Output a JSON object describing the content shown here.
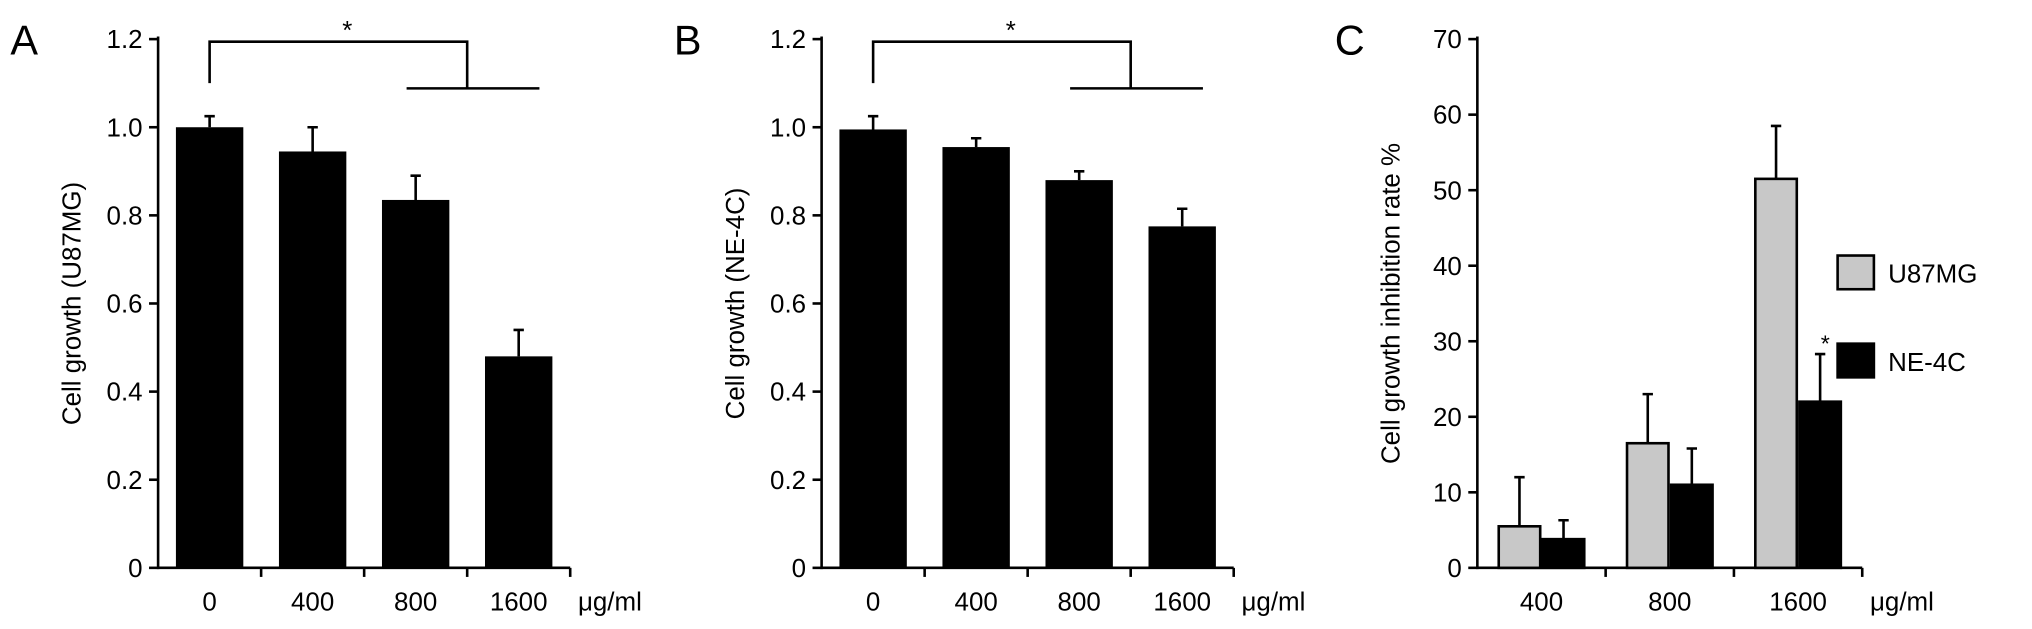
{
  "chart_data": [
    {
      "type": "bar",
      "panel": "A",
      "ylabel": "Cell growth (U87MG)",
      "x_unit": "μg/ml",
      "annotation": "*",
      "categories": [
        "0",
        "400",
        "800",
        "1600"
      ],
      "values": [
        1.0,
        0.945,
        0.835,
        0.48
      ],
      "errors": [
        0.025,
        0.055,
        0.055,
        0.06
      ],
      "color": "#000000",
      "ylim": [
        0,
        1.2
      ],
      "yticks": [
        0,
        0.2,
        0.4,
        0.6,
        0.8,
        {
          "value": 1,
          "label": "1.0"
        },
        1.2
      ]
    },
    {
      "type": "bar",
      "panel": "B",
      "ylabel": "Cell growth (NE-4C)",
      "x_unit": "μg/ml",
      "annotation": "*",
      "categories": [
        "0",
        "400",
        "800",
        "1600"
      ],
      "values": [
        0.995,
        0.955,
        0.88,
        0.775
      ],
      "errors": [
        0.03,
        0.02,
        0.02,
        0.04
      ],
      "color": "#000000",
      "ylim": [
        0,
        1.2
      ],
      "yticks": [
        0,
        0.2,
        0.4,
        0.6,
        0.8,
        {
          "value": 1,
          "label": "1.0"
        },
        1.2
      ]
    },
    {
      "type": "grouped_bar",
      "panel": "C",
      "ylabel": "Cell growth inhibition rate %",
      "x_unit": "μg/ml",
      "annotation": "*",
      "categories": [
        "400",
        "800",
        "1600"
      ],
      "series": [
        {
          "name": "U87MG",
          "color": "#c8c8c8",
          "values": [
            5.5,
            16.5,
            51.5
          ],
          "errors": [
            6.5,
            6.5,
            7
          ]
        },
        {
          "name": "NE-4C",
          "color": "#000000",
          "values": [
            3.8,
            11,
            22
          ],
          "errors": [
            2.5,
            4.8,
            6.3
          ]
        }
      ],
      "ylim": [
        0,
        70
      ],
      "yticks": [
        0,
        10,
        20,
        30,
        40,
        50,
        60,
        70
      ],
      "legend": "right"
    }
  ]
}
